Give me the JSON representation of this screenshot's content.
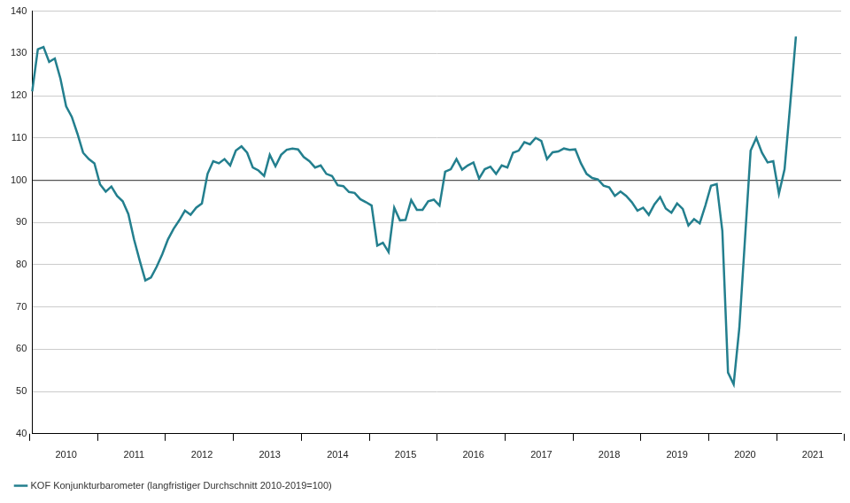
{
  "chart_data": {
    "type": "line",
    "categories": [
      null,
      null,
      null,
      null,
      null,
      null,
      "2010",
      null,
      null,
      null,
      null,
      null,
      null,
      null,
      null,
      null,
      null,
      null,
      "2011",
      null,
      null,
      null,
      null,
      null,
      null,
      null,
      null,
      null,
      null,
      null,
      "2012",
      null,
      null,
      null,
      null,
      null,
      null,
      null,
      null,
      null,
      null,
      null,
      "2013",
      null,
      null,
      null,
      null,
      null,
      null,
      null,
      null,
      null,
      null,
      null,
      "2014",
      null,
      null,
      null,
      null,
      null,
      null,
      null,
      null,
      null,
      null,
      null,
      "2015",
      null,
      null,
      null,
      null,
      null,
      null,
      null,
      null,
      null,
      null,
      null,
      "2016",
      null,
      null,
      null,
      null,
      null,
      null,
      null,
      null,
      null,
      null,
      null,
      "2017",
      null,
      null,
      null,
      null,
      null,
      null,
      null,
      null,
      null,
      null,
      null,
      "2018",
      null,
      null,
      null,
      null,
      null,
      null,
      null,
      null,
      null,
      null,
      null,
      "2019",
      null,
      null,
      null,
      null,
      null,
      null,
      null,
      null,
      null,
      null,
      null,
      "2020",
      null,
      null,
      null,
      null,
      null,
      null,
      null,
      null,
      null,
      null,
      null,
      "2021",
      null,
      null,
      null,
      null,
      null
    ],
    "series": [
      {
        "name": "KOF Konjunkturbarometer (langfristiger Durchschnitt 2010-2019=100)",
        "color": "#237f8e",
        "values": [
          121,
          131,
          131.5,
          128,
          128.8,
          124,
          117.5,
          115,
          111,
          106.5,
          105,
          104,
          99,
          97.3,
          98.5,
          96.3,
          95,
          92,
          86,
          81,
          76.3,
          77,
          79.5,
          82.5,
          86,
          88.5,
          90.5,
          92.8,
          91.8,
          93.5,
          94.5,
          101.5,
          104.5,
          104,
          105,
          103.5,
          107,
          108,
          106.5,
          103,
          102.3,
          101,
          106,
          103.3,
          106,
          107.2,
          107.5,
          107.3,
          105.5,
          104.5,
          103,
          103.5,
          101.5,
          101,
          98.8,
          98.6,
          97.2,
          97,
          95.5,
          94.8,
          94,
          84.5,
          85.2,
          83,
          93.5,
          90.5,
          90.6,
          95.3,
          93,
          93,
          95,
          95.4,
          94,
          102,
          102.6,
          105,
          102.5,
          103.5,
          104.2,
          100.4,
          102.6,
          103.2,
          101.5,
          103.5,
          103,
          106.5,
          107,
          109,
          108.5,
          110,
          109.3,
          105,
          106.6,
          106.8,
          107.5,
          107.2,
          107.3,
          104,
          101.5,
          100.5,
          100.2,
          98.7,
          98.3,
          96.3,
          97.3,
          96.3,
          94.8,
          92.8,
          93.5,
          91.8,
          94.3,
          96,
          93.3,
          92.3,
          94.5,
          93.2,
          89.3,
          90.8,
          89.8,
          94,
          98.7,
          99.1,
          88,
          54.5,
          51.7,
          65,
          86,
          107,
          110,
          106.5,
          104.2,
          104.5,
          96.8,
          102.6,
          118,
          134,
          null,
          null,
          null,
          null,
          null,
          null,
          null,
          null
        ]
      }
    ],
    "ylim": [
      40,
      140
    ],
    "yticks": [
      40,
      50,
      60,
      70,
      80,
      90,
      100,
      110,
      120,
      130,
      140
    ],
    "reference_line": 100,
    "grid": true,
    "legend": "lower left"
  }
}
